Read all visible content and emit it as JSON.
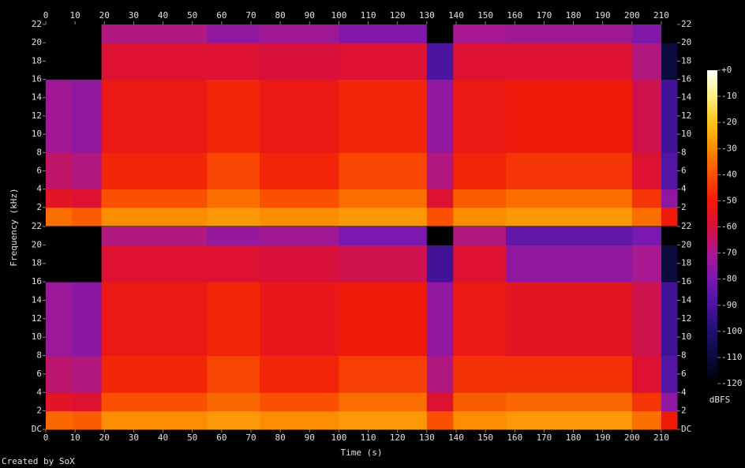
{
  "chart_data": {
    "type": "heatmap",
    "x_label": "Time (s)",
    "y_label": "Frequency (kHz)",
    "z_label": "dBFS",
    "credit": "Created by SoX",
    "xlim": [
      0,
      215.4
    ],
    "xticks": [
      0,
      10,
      20,
      30,
      40,
      50,
      60,
      70,
      80,
      90,
      100,
      110,
      120,
      130,
      140,
      150,
      160,
      170,
      180,
      190,
      200,
      210
    ],
    "x_bins": [
      0,
      9,
      19,
      55,
      73,
      100,
      130,
      139,
      157,
      200,
      210,
      215.4
    ],
    "y_bins": [
      0,
      2,
      4,
      8,
      16,
      20,
      22
    ],
    "zlim": [
      -120,
      0
    ],
    "zticks": [
      {
        "value": 0,
        "label": "+0"
      },
      -10,
      -20,
      -30,
      -40,
      -50,
      -60,
      -70,
      -80,
      -90,
      -100,
      -110,
      -120
    ],
    "colormap": [
      "#000000",
      "#0a0a3c",
      "#20106e",
      "#4a14a0",
      "#7818b0",
      "#a81890",
      "#d8103c",
      "#f01a0a",
      "#fa5000",
      "#fc8c00",
      "#fcc41c",
      "#fef080",
      "#ffffff"
    ],
    "channels": [
      {
        "ylim": [
          0,
          22
        ],
        "yticks": [
          2,
          4,
          6,
          8,
          10,
          12,
          14,
          16,
          18,
          20,
          22
        ],
        "values": [
          [
            -35,
            -38,
            -30,
            -28,
            -30,
            -28,
            -40,
            -30,
            -28,
            -35,
            -50
          ],
          [
            -55,
            -58,
            -40,
            -35,
            -40,
            -35,
            -58,
            -38,
            -35,
            -45,
            -75
          ],
          [
            -65,
            -68,
            -48,
            -42,
            -48,
            -42,
            -68,
            -48,
            -45,
            -58,
            -88
          ],
          [
            -72,
            -75,
            -52,
            -48,
            -52,
            -48,
            -75,
            -52,
            -50,
            -62,
            -92
          ],
          [
            -120,
            -120,
            -58,
            -58,
            -60,
            -58,
            -90,
            -58,
            -58,
            -68,
            -110
          ],
          [
            -120,
            -120,
            -68,
            -75,
            -72,
            -78,
            -120,
            -70,
            -72,
            -78,
            -120
          ]
        ]
      },
      {
        "ylim": [
          0,
          22
        ],
        "yticks": [
          {
            "value": 0,
            "label": "DC"
          },
          2,
          4,
          6,
          8,
          10,
          12,
          14,
          16,
          18,
          20,
          22
        ],
        "values": [
          [
            -36,
            -38,
            -30,
            -28,
            -30,
            -28,
            -40,
            -30,
            -28,
            -35,
            -50
          ],
          [
            -56,
            -58,
            -40,
            -36,
            -40,
            -35,
            -58,
            -38,
            -36,
            -45,
            -75
          ],
          [
            -66,
            -68,
            -48,
            -42,
            -48,
            -43,
            -68,
            -46,
            -46,
            -58,
            -88
          ],
          [
            -73,
            -76,
            -52,
            -48,
            -53,
            -50,
            -75,
            -52,
            -55,
            -62,
            -92
          ],
          [
            -120,
            -120,
            -58,
            -58,
            -60,
            -62,
            -92,
            -58,
            -75,
            -70,
            -110
          ],
          [
            -120,
            -120,
            -68,
            -74,
            -72,
            -80,
            -120,
            -68,
            -85,
            -80,
            -120
          ]
        ]
      }
    ]
  }
}
